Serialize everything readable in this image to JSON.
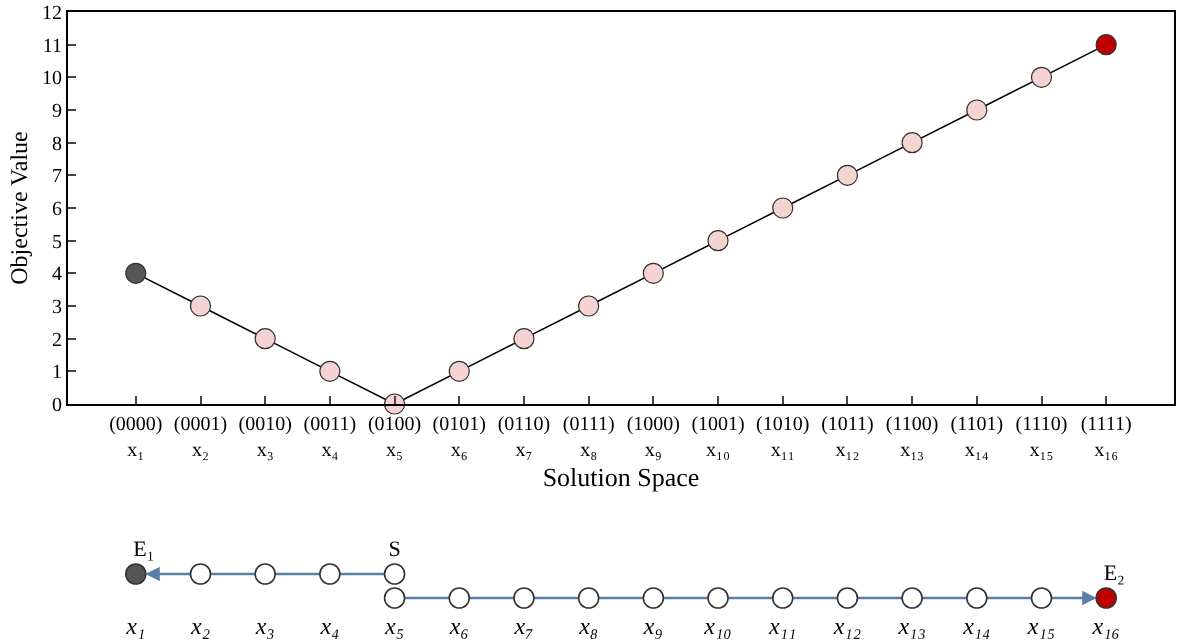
{
  "chart_data": [
    {
      "type": "line",
      "xlabel": "Solution Space",
      "ylabel": "Objective Value",
      "categories": [
        "(0000) x₁",
        "(0001) x₂",
        "(0010) x₃",
        "(0011) x₄",
        "(0100) x₅",
        "(0101) x₆",
        "(0110) x₇",
        "(0111) x₈",
        "(1000) x₉",
        "(1001) x₁₀",
        "(1010) x₁₁",
        "(1011) x₁₂",
        "(1100) x₁₃",
        "(1101) x₁₄",
        "(1110) x₁₅",
        "(1111) x₁₆"
      ],
      "series": [
        {
          "color": "#000000",
          "values": [
            4,
            3,
            2,
            1,
            0,
            1,
            2,
            3,
            4,
            5,
            6,
            7,
            8,
            9,
            10,
            11
          ],
          "colors": [
            "#555555",
            "#f6d3d3",
            "#f6d3d3",
            "#f6d3d3",
            "#f6d3d3",
            "#f6d3d3",
            "#f6d3d3",
            "#f6d3d3",
            "#f6d3d3",
            "#f6d3d3",
            "#f6d3d3",
            "#f6d3d3",
            "#f6d3d3",
            "#f6d3d3",
            "#f6d3d3",
            "#c00000"
          ]
        }
      ],
      "ylim": [
        0,
        12
      ],
      "yticks": [
        0,
        1,
        2,
        3,
        4,
        5,
        6,
        7,
        8,
        9,
        10,
        11,
        12
      ],
      "marker": "circle",
      "line_style": "solid"
    },
    {
      "type": "other",
      "categories": [
        "x₁",
        "x₂",
        "x₃",
        "x₄",
        "x₅",
        "x₆",
        "x₇",
        "x₈",
        "x₉",
        "x₁₀",
        "x₁₁",
        "x₁₂",
        "x₁₃",
        "x₁₄",
        "x₁₅",
        "x₁₆"
      ],
      "annotations": [
        "S",
        "E₁",
        "E₂"
      ]
    }
  ]
}
